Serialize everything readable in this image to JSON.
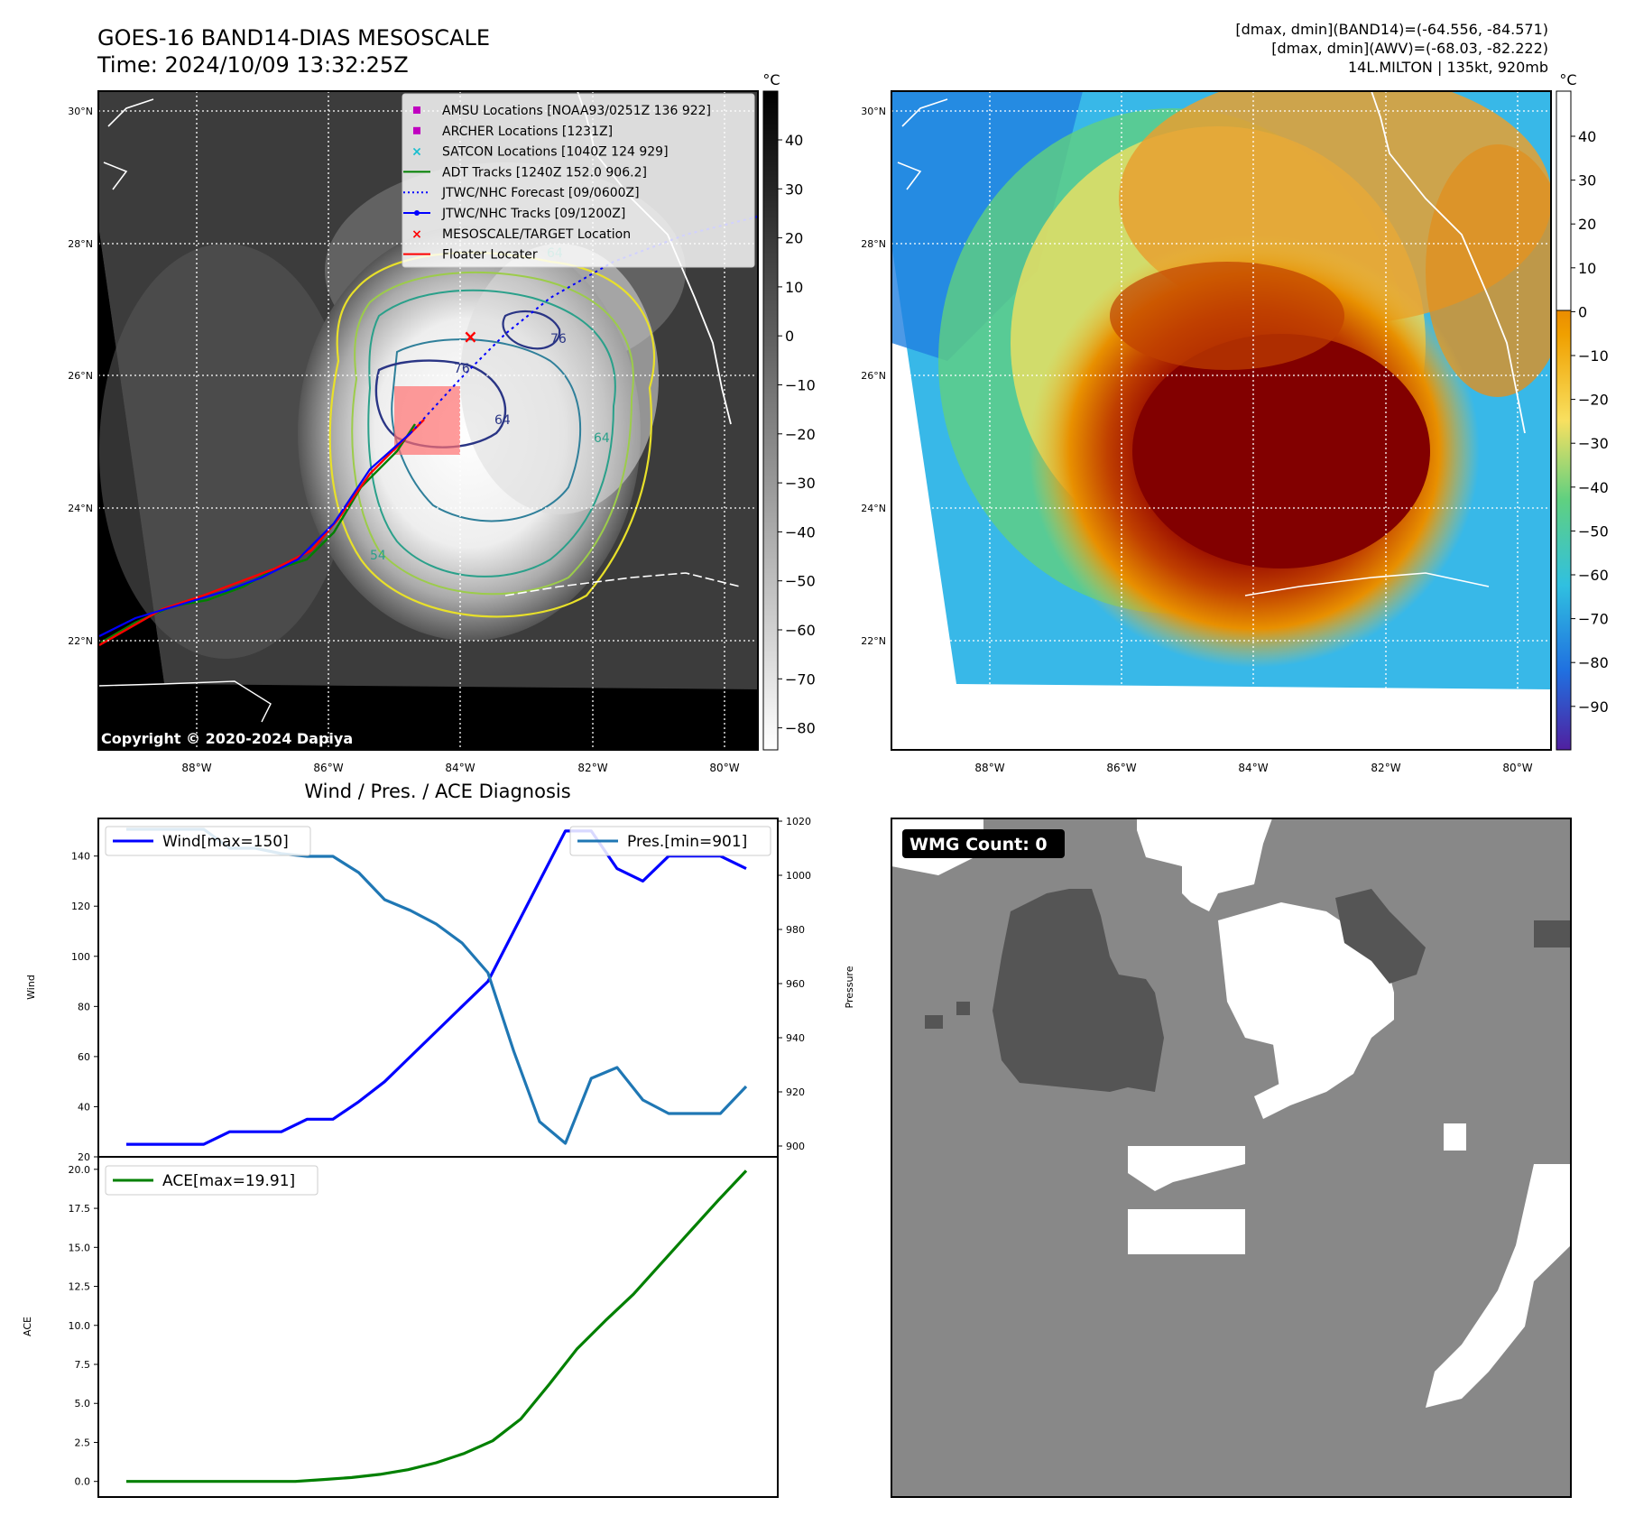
{
  "header": {
    "title_line1": "GOES-16 BAND14-DIAS MESOSCALE",
    "title_line2": "Time: 2024/10/09 13:32:25Z",
    "stats_line1": "[dmax, dmin](BAND14)=(-64.556, -84.571)",
    "stats_line2": "[dmax, dmin](AWV)=(-68.03, -82.222)",
    "stats_line3": "14L.MILTON | 135kt, 920mb"
  },
  "map_left": {
    "copyright": "Copyright © 2020-2024 Dapiya",
    "lat_ticks": [
      "30°N",
      "28°N",
      "26°N",
      "24°N",
      "22°N"
    ],
    "lon_ticks": [
      "88°W",
      "86°W",
      "84°W",
      "82°W",
      "80°W"
    ],
    "colorbar_unit": "°C",
    "colorbar_ticks": [
      "40",
      "30",
      "20",
      "10",
      "0",
      "−10",
      "−20",
      "−30",
      "−40",
      "−50",
      "−60",
      "−70",
      "−80"
    ],
    "contour_labels": [
      "64",
      "64",
      "54",
      "76",
      "76",
      "64"
    ],
    "legend": [
      {
        "label": "AMSU Locations [NOAA93/0251Z 136 922]",
        "marker": "square",
        "color": "#c000c0"
      },
      {
        "label": "ARCHER Locations [1231Z]",
        "marker": "square",
        "color": "#c000c0"
      },
      {
        "label": "SATCON Locations [1040Z 124 929]",
        "marker": "x",
        "color": "#17becf"
      },
      {
        "label": "ADT Tracks [1240Z 152.0 906.2]",
        "marker": "line",
        "color": "#008000"
      },
      {
        "label": "JTWC/NHC Forecast [09/0600Z]",
        "marker": "dotted",
        "color": "#0000ff"
      },
      {
        "label": "JTWC/NHC Tracks [09/1200Z]",
        "marker": "line-dot",
        "color": "#0000ff"
      },
      {
        "label": "MESOSCALE/TARGET Location",
        "marker": "x",
        "color": "#ff0000"
      },
      {
        "label": "Floater Locater",
        "marker": "line",
        "color": "#ff0000"
      }
    ]
  },
  "map_right": {
    "lat_ticks": [
      "30°N",
      "28°N",
      "26°N",
      "24°N",
      "22°N"
    ],
    "lon_ticks": [
      "88°W",
      "86°W",
      "84°W",
      "82°W",
      "80°W"
    ],
    "colorbar_unit": "°C",
    "colorbar_ticks": [
      "40",
      "30",
      "20",
      "10",
      "0",
      "−10",
      "−20",
      "−30",
      "−40",
      "−50",
      "−60",
      "−70",
      "−80",
      "−90"
    ]
  },
  "wmg": {
    "label": "WMG Count: 0"
  },
  "chart_data": [
    {
      "type": "line",
      "title": "Wind / Pres. / ACE Diagnosis",
      "ylabel": "Wind",
      "y2label": "Pressure",
      "ylim": [
        20,
        155
      ],
      "y2lim": [
        896,
        1021
      ],
      "yticks": [
        "20",
        "40",
        "60",
        "80",
        "100",
        "120",
        "140"
      ],
      "y2ticks": [
        "900",
        "920",
        "940",
        "960",
        "980",
        "1000",
        "1020"
      ],
      "series": [
        {
          "name": "Wind[max=150]",
          "axis": "left",
          "color": "#0000ff",
          "values": [
            25,
            25,
            25,
            25,
            30,
            30,
            30,
            35,
            35,
            42,
            50,
            60,
            70,
            80,
            90,
            110,
            130,
            150,
            150,
            135,
            130,
            140,
            140,
            140,
            135
          ]
        },
        {
          "name": "Pres.[min=901]",
          "axis": "right",
          "color": "#1f77b4",
          "values": [
            1017,
            1017,
            1017,
            1017,
            1010,
            1010,
            1008,
            1007,
            1007,
            1001,
            991,
            987,
            982,
            975,
            964,
            935,
            909,
            901,
            925,
            929,
            917,
            912,
            912,
            912,
            922
          ]
        }
      ]
    },
    {
      "type": "line",
      "ylabel": "ACE",
      "ylim": [
        -1.0,
        20.8
      ],
      "yticks": [
        "0.0",
        "2.5",
        "5.0",
        "7.5",
        "10.0",
        "12.5",
        "15.0",
        "17.5",
        "20.0"
      ],
      "series": [
        {
          "name": "ACE[max=19.91]",
          "color": "#008000",
          "values": [
            0,
            0,
            0,
            0,
            0,
            0,
            0,
            0.12,
            0.25,
            0.45,
            0.75,
            1.2,
            1.8,
            2.6,
            4.0,
            6.2,
            8.5,
            10.3,
            12.0,
            14.0,
            16.0,
            18.0,
            19.91
          ]
        }
      ]
    }
  ]
}
